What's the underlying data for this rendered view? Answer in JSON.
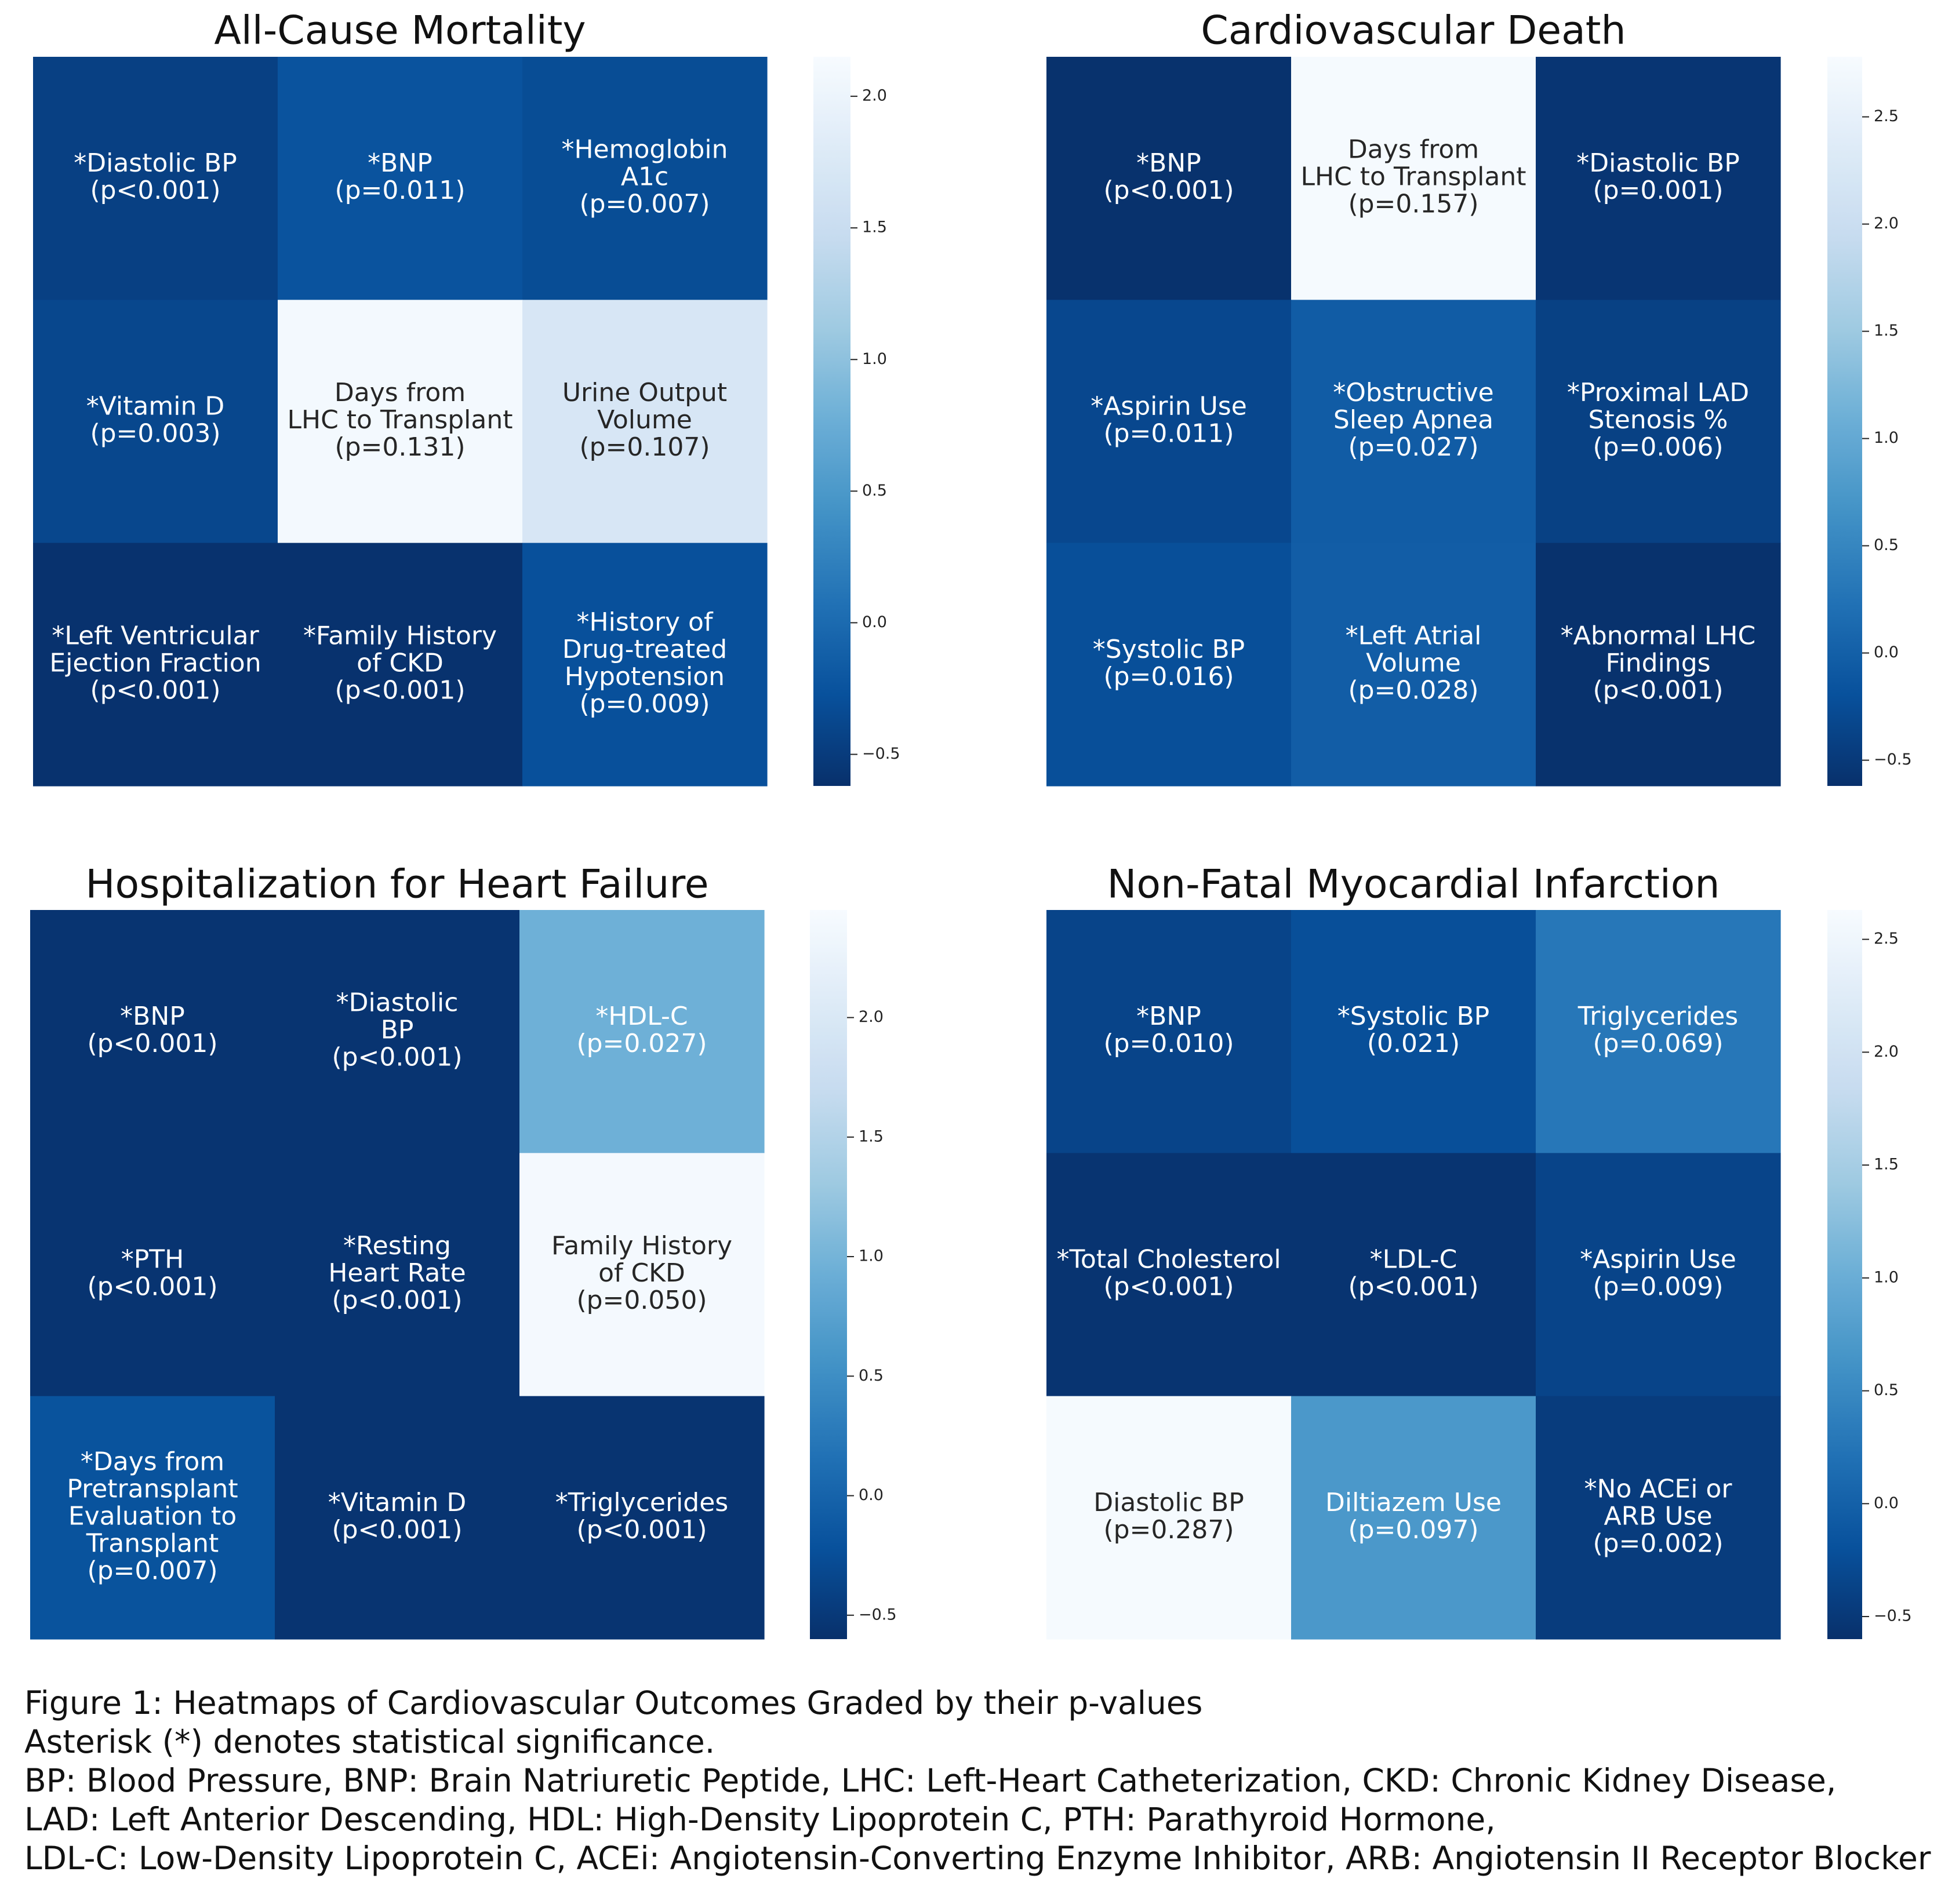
{
  "chart_data": [
    {
      "type": "heatmap",
      "title": "All-Cause Mortality",
      "rows": 3,
      "cols": 3,
      "cells": [
        {
          "label": "*Diastolic BP\n(p<0.001)",
          "value": -0.45
        },
        {
          "label": "*BNP\n(p=0.011)",
          "value": -0.25
        },
        {
          "label": "*Hemoglobin\nA1c\n(p=0.007)",
          "value": -0.32
        },
        {
          "label": "*Vitamin D\n(p=0.003)",
          "value": -0.38
        },
        {
          "label": "Days from\nLHC to Transplant\n(p=0.131)",
          "value": 2.1
        },
        {
          "label": "Urine Output\nVolume\n(p=0.107)",
          "value": 1.7
        },
        {
          "label": "*Left Ventricular\nEjection Fraction\n(p<0.001)",
          "value": -0.6
        },
        {
          "label": "*Family History\nof CKD\n(p<0.001)",
          "value": -0.6
        },
        {
          "label": "*History of\nDrug-treated\nHypotension\n(p=0.009)",
          "value": -0.28
        }
      ],
      "colorbar": {
        "min": -0.62,
        "max": 2.15,
        "ticks": [
          -0.5,
          0.0,
          0.5,
          1.0,
          1.5,
          2.0
        ],
        "tick_labels": [
          "−0.5",
          "0.0",
          "0.5",
          "1.0",
          "1.5",
          "2.0"
        ]
      }
    },
    {
      "type": "heatmap",
      "title": "Cardiovascular Death",
      "rows": 3,
      "cols": 3,
      "cells": [
        {
          "label": "*BNP\n(p<0.001)",
          "value": -0.6
        },
        {
          "label": "Days from\nLHC to Transplant\n(p=0.157)",
          "value": 2.75
        },
        {
          "label": "*Diastolic BP\n(p=0.001)",
          "value": -0.55
        },
        {
          "label": "*Aspirin Use\n(p=0.011)",
          "value": -0.32
        },
        {
          "label": "*Obstructive\nSleep Apnea\n(p=0.027)",
          "value": -0.05
        },
        {
          "label": "*Proximal LAD\nStenosis %\n(p=0.006)",
          "value": -0.4
        },
        {
          "label": "*Systolic BP\n(p=0.016)",
          "value": -0.22
        },
        {
          "label": "*Left Atrial\nVolume\n(p=0.028)",
          "value": -0.03
        },
        {
          "label": "*Abnormal LHC\nFindings\n(p<0.001)",
          "value": -0.6
        }
      ],
      "colorbar": {
        "min": -0.62,
        "max": 2.78,
        "ticks": [
          -0.5,
          0.0,
          0.5,
          1.0,
          1.5,
          2.0,
          2.5
        ],
        "tick_labels": [
          "−0.5",
          "0.0",
          "0.5",
          "1.0",
          "1.5",
          "2.0",
          "2.5"
        ]
      }
    },
    {
      "type": "heatmap",
      "title": "Hospitalization for Heart Failure",
      "rows": 3,
      "cols": 3,
      "cells": [
        {
          "label": "*BNP\n(p<0.001)",
          "value": -0.55
        },
        {
          "label": "*Diastolic\nBP\n(p<0.001)",
          "value": -0.55
        },
        {
          "label": "*HDL-C\n(p=0.027)",
          "value": 0.95
        },
        {
          "label": "*PTH\n(p<0.001)",
          "value": -0.55
        },
        {
          "label": "*Resting\nHeart Rate\n(p<0.001)",
          "value": -0.55
        },
        {
          "label": "Family History\nof CKD\n(p=0.050)",
          "value": 2.4
        },
        {
          "label": "*Days from\nPretransplant\nEvaluation to\nTransplant\n(p=0.007)",
          "value": -0.2
        },
        {
          "label": "*Vitamin D\n(p<0.001)",
          "value": -0.55
        },
        {
          "label": "*Triglycerides\n(p<0.001)",
          "value": -0.55
        }
      ],
      "colorbar": {
        "min": -0.6,
        "max": 2.45,
        "ticks": [
          -0.5,
          0.0,
          0.5,
          1.0,
          1.5,
          2.0
        ],
        "tick_labels": [
          "−0.5",
          "0.0",
          "0.5",
          "1.0",
          "1.5",
          "2.0"
        ]
      }
    },
    {
      "type": "heatmap",
      "title": "Non-Fatal Myocardial Infarction",
      "rows": 3,
      "cols": 3,
      "cells": [
        {
          "label": "*BNP\n(p=0.010)",
          "value": -0.35
        },
        {
          "label": "*Systolic BP\n(0.021)",
          "value": -0.22
        },
        {
          "label": "Triglycerides\n(p=0.069)",
          "value": 0.28
        },
        {
          "label": "*Total Cholesterol\n(p<0.001)",
          "value": -0.55
        },
        {
          "label": "*LDL-C\n(p<0.001)",
          "value": -0.55
        },
        {
          "label": "*Aspirin Use\n(p=0.009)",
          "value": -0.35
        },
        {
          "label": "Diastolic BP\n(p=0.287)",
          "value": 2.6
        },
        {
          "label": "Diltiazem Use\n(p=0.097)",
          "value": 0.7
        },
        {
          "label": "*No ACEi or\nARB Use\n(p=0.002)",
          "value": -0.45
        }
      ],
      "colorbar": {
        "min": -0.6,
        "max": 2.63,
        "ticks": [
          -0.5,
          0.0,
          0.5,
          1.0,
          1.5,
          2.0,
          2.5
        ],
        "tick_labels": [
          "−0.5",
          "0.0",
          "0.5",
          "1.0",
          "1.5",
          "2.0",
          "2.5"
        ]
      }
    }
  ],
  "caption": {
    "line1": "Figure 1: Heatmaps of Cardiovascular Outcomes Graded by their p-values",
    "line2": "Asterisk (*) denotes statistical significance.",
    "line3": "BP: Blood Pressure, BNP: Brain Natriuretic Peptide, LHC: Left-Heart Catheterization, CKD: Chronic Kidney Disease,",
    "line4": "LAD: Left Anterior Descending, HDL: High-Density Lipoprotein C, PTH: Parathyroid Hormone,",
    "line5": "LDL-C: Low-Density Lipoprotein C, ACEi: Angiotensin-Converting Enzyme Inhibitor, ARB: Angiotensin II Receptor Blocker"
  }
}
